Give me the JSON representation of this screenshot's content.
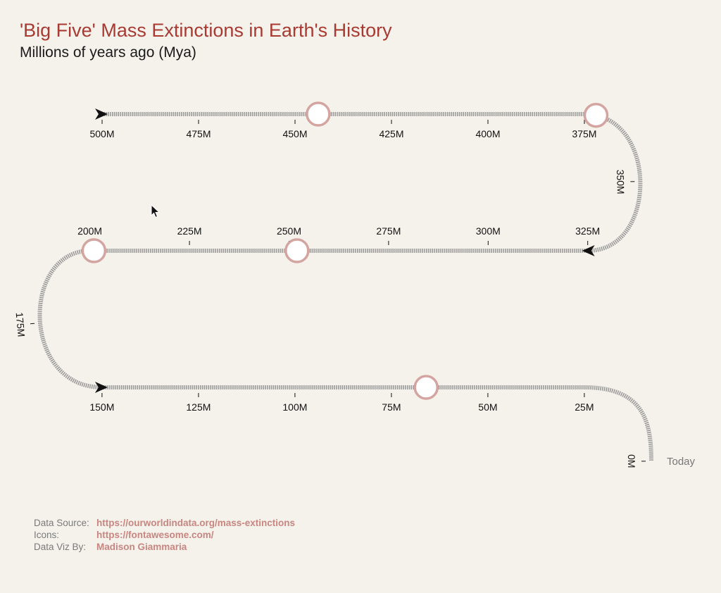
{
  "header": {
    "title": "'Big Five' Mass Extinctions in Earth's History",
    "subtitle": "Millions of years ago (Mya)"
  },
  "chart_data": {
    "type": "timeline",
    "unit": "Mya",
    "range": [
      500,
      0
    ],
    "tick_step": 25,
    "ticks": [
      {
        "value": 500,
        "label": "500M"
      },
      {
        "value": 475,
        "label": "475M"
      },
      {
        "value": 450,
        "label": "450M"
      },
      {
        "value": 425,
        "label": "425M"
      },
      {
        "value": 400,
        "label": "400M"
      },
      {
        "value": 375,
        "label": "375M"
      },
      {
        "value": 350,
        "label": "350M"
      },
      {
        "value": 325,
        "label": "325M"
      },
      {
        "value": 300,
        "label": "300M"
      },
      {
        "value": 275,
        "label": "275M"
      },
      {
        "value": 250,
        "label": "250M"
      },
      {
        "value": 225,
        "label": "225M"
      },
      {
        "value": 200,
        "label": "200M"
      },
      {
        "value": 175,
        "label": "175M"
      },
      {
        "value": 150,
        "label": "150M"
      },
      {
        "value": 125,
        "label": "125M"
      },
      {
        "value": 100,
        "label": "100M"
      },
      {
        "value": 75,
        "label": "75M"
      },
      {
        "value": 50,
        "label": "50M"
      },
      {
        "value": 25,
        "label": "25M"
      },
      {
        "value": 0,
        "label": "0M"
      }
    ],
    "events": [
      {
        "mya": 444
      },
      {
        "mya": 372
      },
      {
        "mya": 252
      },
      {
        "mya": 201
      },
      {
        "mya": 66
      }
    ],
    "end_label": "Today",
    "colors": {
      "track": "#9a9a9a",
      "event_ring": "#d4a5a0",
      "title": "#a83a32",
      "link": "#c98580"
    }
  },
  "credits": [
    {
      "key": "Data Source:",
      "value": "https://ourworldindata.org/mass-extinctions"
    },
    {
      "key": "Icons:",
      "value": "https://fontawesome.com/"
    },
    {
      "key": "Data Viz By:",
      "value": "Madison Giammaria"
    }
  ]
}
